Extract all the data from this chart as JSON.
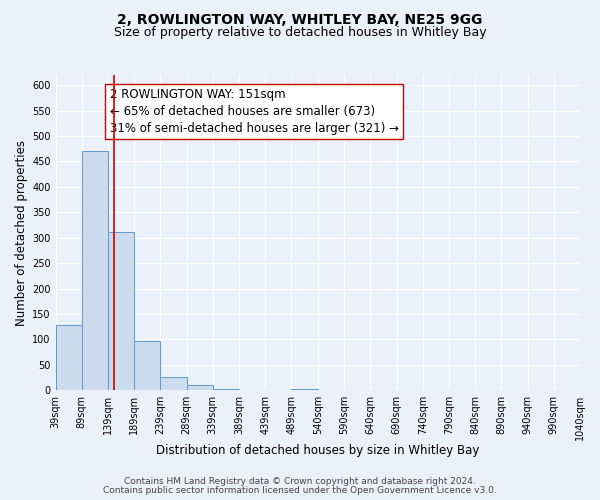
{
  "title": "2, ROWLINGTON WAY, WHITLEY BAY, NE25 9GG",
  "subtitle": "Size of property relative to detached houses in Whitley Bay",
  "xlabel": "Distribution of detached houses by size in Whitley Bay",
  "ylabel": "Number of detached properties",
  "bar_edges": [
    39,
    89,
    139,
    189,
    239,
    289,
    339,
    389,
    439,
    489,
    540,
    590,
    640,
    690,
    740,
    790,
    840,
    890,
    940,
    990,
    1040
  ],
  "bar_heights": [
    128,
    470,
    311,
    96,
    26,
    11,
    3,
    1,
    0,
    2,
    0,
    0,
    1,
    0,
    0,
    0,
    0,
    0,
    0,
    1
  ],
  "bar_color": "#ccdcec",
  "bar_edgecolor": "#5b9bd5",
  "vline_x": 151,
  "vline_color": "#cc0000",
  "ylim": [
    0,
    620
  ],
  "yticks": [
    0,
    50,
    100,
    150,
    200,
    250,
    300,
    350,
    400,
    450,
    500,
    550,
    600
  ],
  "xlabels": [
    "39sqm",
    "89sqm",
    "139sqm",
    "189sqm",
    "239sqm",
    "289sqm",
    "339sqm",
    "389sqm",
    "439sqm",
    "489sqm",
    "540sqm",
    "590sqm",
    "640sqm",
    "690sqm",
    "740sqm",
    "790sqm",
    "840sqm",
    "890sqm",
    "940sqm",
    "990sqm",
    "1040sqm"
  ],
  "annotation_title": "2 ROWLINGTON WAY: 151sqm",
  "annotation_line1": "← 65% of detached houses are smaller (673)",
  "annotation_line2": "31% of semi-detached houses are larger (321) →",
  "footer1": "Contains HM Land Registry data © Crown copyright and database right 2024.",
  "footer2": "Contains public sector information licensed under the Open Government Licence v3.0.",
  "bg_color": "#eaf1fb",
  "plot_bg_color": "#eaf1fb",
  "grid_color": "#ffffff",
  "title_fontsize": 10,
  "subtitle_fontsize": 9,
  "axis_label_fontsize": 8.5,
  "tick_fontsize": 7,
  "annotation_fontsize": 8.5,
  "footer_fontsize": 6.5
}
